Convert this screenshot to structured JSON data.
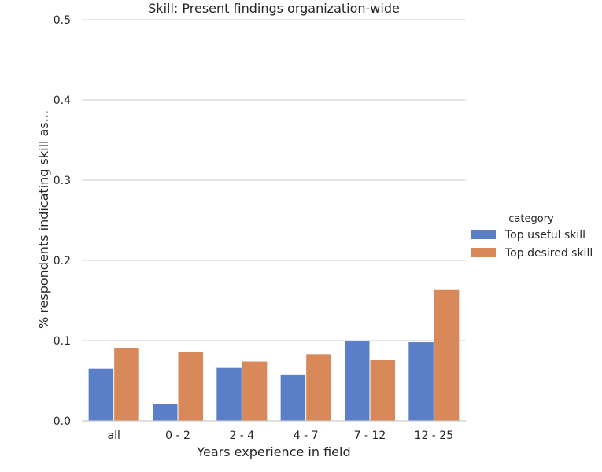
{
  "chart_data": {
    "type": "bar",
    "title": "Skill: Present findings organization-wide",
    "xlabel": "Years experience in field",
    "ylabel": "% respondents indicating skill as...",
    "categories": [
      "all",
      "0 - 2",
      "2 - 4",
      "4 - 7",
      "7 - 12",
      "12 - 25"
    ],
    "ylim": [
      0,
      0.5
    ],
    "yticks": [
      "0.0",
      "0.1",
      "0.2",
      "0.3",
      "0.4",
      "0.5"
    ],
    "grid": "horizontal",
    "legend": {
      "title": "category",
      "placement": "right"
    },
    "series": [
      {
        "name": "Top useful skill",
        "color": "#5a7fc8",
        "values": [
          0.065,
          0.021,
          0.066,
          0.057,
          0.099,
          0.098
        ]
      },
      {
        "name": "Top desired skill",
        "color": "#d9885a",
        "values": [
          0.091,
          0.086,
          0.074,
          0.083,
          0.076,
          0.163
        ]
      }
    ]
  }
}
